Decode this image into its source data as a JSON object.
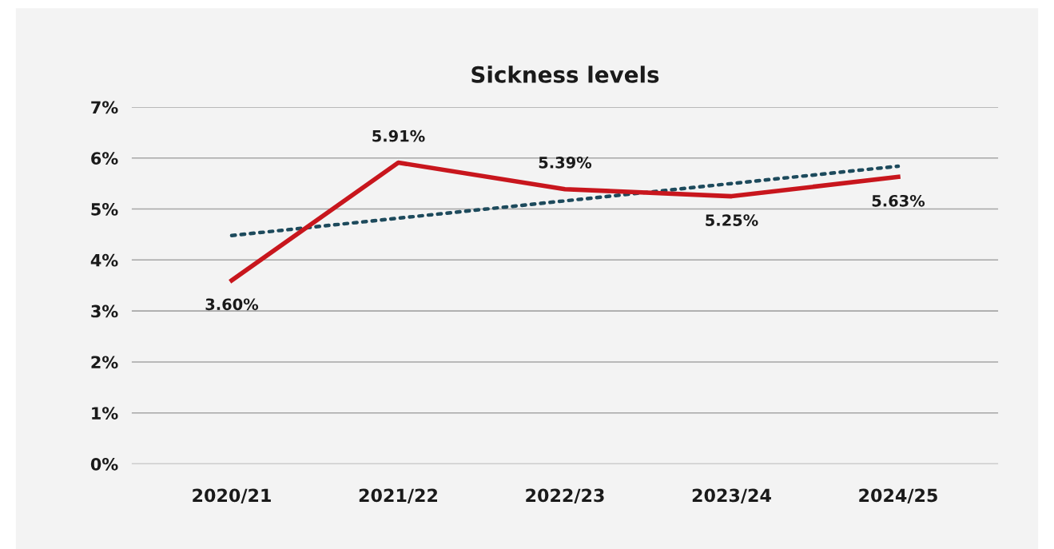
{
  "chart_data": {
    "type": "line",
    "title": "Sickness levels",
    "categories": [
      "2020/21",
      "2021/22",
      "2022/23",
      "2023/24",
      "2024/25"
    ],
    "series": [
      {
        "color": "#c8161d",
        "values": [
          3.6,
          5.91,
          5.39,
          5.25,
          5.63
        ],
        "value_labels": [
          "3.60%",
          "5.91%",
          "5.39%",
          "5.25%",
          "5.63%"
        ],
        "marker": "none",
        "line_style": "solid"
      },
      {
        "type": "line",
        "x": [
          "2020/21",
          "2021/22",
          "2022/23",
          "2023/24",
          "2024/25"
        ],
        "color": "#1d4a5c",
        "values": [
          4.48,
          4.82,
          5.16,
          5.5,
          5.84
        ],
        "marker": "none",
        "line_style": "dotted"
      }
    ],
    "ylim": [
      0,
      7
    ],
    "yticks": [
      {
        "value": 0,
        "label": "0%"
      },
      {
        "value": 1,
        "label": "1%"
      },
      {
        "value": 2,
        "label": "2%"
      },
      {
        "value": 3,
        "label": "3%"
      },
      {
        "value": 4,
        "label": "4%"
      },
      {
        "value": 5,
        "label": "5%"
      },
      {
        "value": 6,
        "label": "6%"
      },
      {
        "value": 7,
        "label": "7%"
      }
    ],
    "grid": "y"
  }
}
